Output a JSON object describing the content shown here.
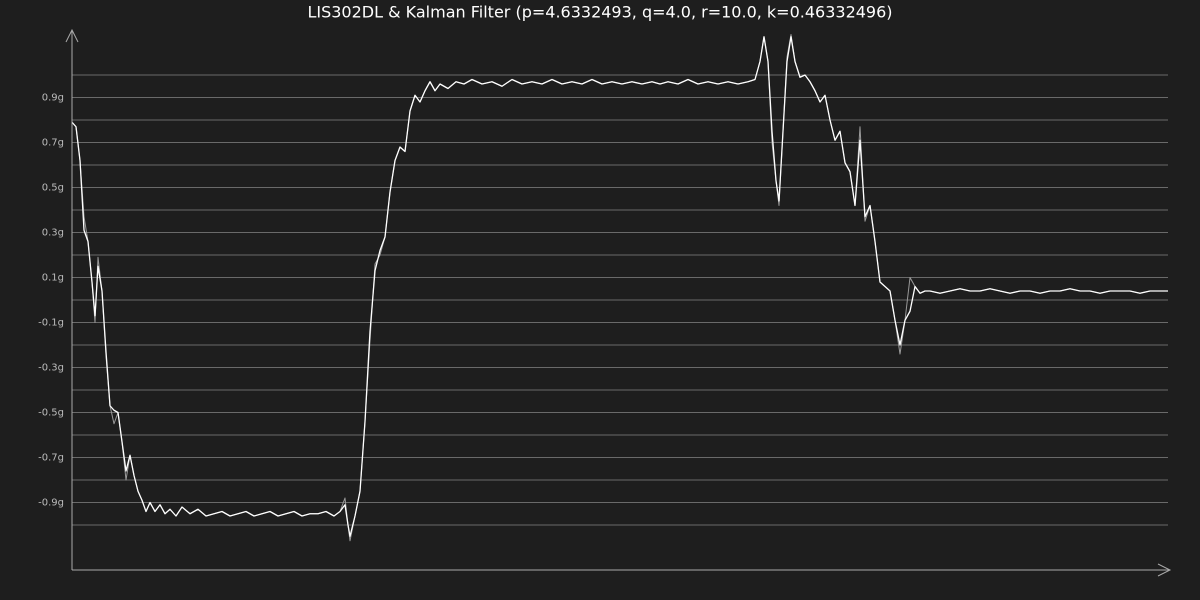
{
  "chart_data": {
    "type": "line",
    "title": "LIS302DL & Kalman Filter (p=4.6332493, q=4.0, r=10.0, k=0.46332496)",
    "x": [
      0,
      4,
      8,
      12,
      16,
      20,
      23,
      26,
      30,
      34,
      38,
      42,
      46,
      50,
      54,
      58,
      62,
      66,
      70,
      74,
      78,
      83,
      88,
      93,
      98,
      104,
      110,
      118,
      126,
      134,
      142,
      150,
      158,
      166,
      174,
      182,
      190,
      198,
      206,
      214,
      222,
      230,
      238,
      246,
      254,
      262,
      268,
      273,
      276,
      278,
      283,
      288,
      293,
      298,
      303,
      308,
      313,
      318,
      323,
      328,
      333,
      338,
      343,
      348,
      353,
      358,
      363,
      368,
      376,
      384,
      392,
      400,
      410,
      420,
      430,
      440,
      450,
      460,
      470,
      480,
      490,
      500,
      510,
      520,
      530,
      540,
      550,
      560,
      570,
      580,
      588,
      596,
      606,
      616,
      626,
      636,
      646,
      656,
      666,
      676,
      683,
      688,
      692,
      696,
      700,
      704,
      707,
      711,
      715,
      719,
      723,
      728,
      733,
      738,
      743,
      748,
      753,
      758,
      763,
      768,
      773,
      778,
      783,
      788,
      793,
      798,
      803,
      808,
      813,
      818,
      823,
      828,
      833,
      838,
      843,
      848,
      853,
      858,
      868,
      878,
      888,
      898,
      908,
      918,
      928,
      938,
      948,
      958,
      968,
      978,
      988,
      998,
      1008,
      1018,
      1028,
      1038,
      1048,
      1058,
      1068,
      1078,
      1088,
      1096
    ],
    "series": [
      {
        "color": "#9a9a9a",
        "values": [
          0.79,
          0.77,
          0.62,
          0.37,
          0.26,
          0.08,
          -0.1,
          0.19,
          0.04,
          -0.25,
          -0.47,
          -0.55,
          -0.5,
          -0.63,
          -0.8,
          -0.69,
          -0.78,
          -0.85,
          -0.89,
          -0.94,
          -0.9,
          -0.94,
          -0.91,
          -0.95,
          -0.93,
          -0.96,
          -0.92,
          -0.95,
          -0.93,
          -0.96,
          -0.95,
          -0.94,
          -0.96,
          -0.95,
          -0.94,
          -0.96,
          -0.95,
          -0.94,
          -0.96,
          -0.95,
          -0.94,
          -0.96,
          -0.95,
          -0.95,
          -0.94,
          -0.96,
          -0.94,
          -0.88,
          -1.0,
          -1.07,
          -0.96,
          -0.85,
          -0.54,
          -0.18,
          0.16,
          0.2,
          0.28,
          0.48,
          0.62,
          0.68,
          0.66,
          0.84,
          0.91,
          0.88,
          0.93,
          0.97,
          0.93,
          0.96,
          0.94,
          0.97,
          0.96,
          0.98,
          0.96,
          0.97,
          0.95,
          0.98,
          0.96,
          0.97,
          0.96,
          0.98,
          0.96,
          0.97,
          0.96,
          0.98,
          0.96,
          0.97,
          0.96,
          0.97,
          0.96,
          0.97,
          0.96,
          0.97,
          0.96,
          0.98,
          0.96,
          0.97,
          0.96,
          0.97,
          0.96,
          0.97,
          0.98,
          1.06,
          1.17,
          1.06,
          0.7,
          0.53,
          0.42,
          0.75,
          1.08,
          1.18,
          1.06,
          0.99,
          1.0,
          0.97,
          0.93,
          0.88,
          0.91,
          0.8,
          0.71,
          0.75,
          0.61,
          0.57,
          0.42,
          0.77,
          0.35,
          0.42,
          0.26,
          0.08,
          0.06,
          0.04,
          -0.09,
          -0.24,
          -0.09,
          0.1,
          0.06,
          0.03,
          0.04,
          0.04,
          0.03,
          0.04,
          0.05,
          0.04,
          0.04,
          0.05,
          0.04,
          0.03,
          0.04,
          0.04,
          0.03,
          0.04,
          0.04,
          0.05,
          0.04,
          0.04,
          0.03,
          0.04,
          0.04,
          0.04,
          0.03,
          0.04,
          0.04,
          0.04
        ]
      },
      {
        "color": "#ffffff",
        "values": [
          0.79,
          0.77,
          0.62,
          0.31,
          0.26,
          0.08,
          -0.07,
          0.15,
          0.04,
          -0.23,
          -0.47,
          -0.49,
          -0.5,
          -0.63,
          -0.76,
          -0.69,
          -0.78,
          -0.85,
          -0.89,
          -0.94,
          -0.9,
          -0.94,
          -0.91,
          -0.95,
          -0.93,
          -0.96,
          -0.92,
          -0.95,
          -0.93,
          -0.96,
          -0.95,
          -0.94,
          -0.96,
          -0.95,
          -0.94,
          -0.96,
          -0.95,
          -0.94,
          -0.96,
          -0.95,
          -0.94,
          -0.96,
          -0.95,
          -0.95,
          -0.94,
          -0.96,
          -0.94,
          -0.91,
          -1.0,
          -1.05,
          -0.96,
          -0.85,
          -0.54,
          -0.14,
          0.13,
          0.22,
          0.28,
          0.48,
          0.62,
          0.68,
          0.66,
          0.84,
          0.91,
          0.88,
          0.93,
          0.97,
          0.93,
          0.96,
          0.94,
          0.97,
          0.96,
          0.98,
          0.96,
          0.97,
          0.95,
          0.98,
          0.96,
          0.97,
          0.96,
          0.98,
          0.96,
          0.97,
          0.96,
          0.98,
          0.96,
          0.97,
          0.96,
          0.97,
          0.96,
          0.97,
          0.96,
          0.97,
          0.96,
          0.98,
          0.96,
          0.97,
          0.96,
          0.97,
          0.96,
          0.97,
          0.98,
          1.06,
          1.17,
          1.06,
          0.75,
          0.53,
          0.44,
          0.75,
          1.06,
          1.17,
          1.06,
          0.99,
          1.0,
          0.97,
          0.93,
          0.88,
          0.91,
          0.8,
          0.71,
          0.75,
          0.61,
          0.57,
          0.42,
          0.71,
          0.37,
          0.42,
          0.26,
          0.08,
          0.06,
          0.04,
          -0.09,
          -0.2,
          -0.09,
          -0.05,
          0.06,
          0.03,
          0.04,
          0.04,
          0.03,
          0.04,
          0.05,
          0.04,
          0.04,
          0.05,
          0.04,
          0.03,
          0.04,
          0.04,
          0.03,
          0.04,
          0.04,
          0.05,
          0.04,
          0.04,
          0.03,
          0.04,
          0.04,
          0.04,
          0.03,
          0.04,
          0.04,
          0.04
        ]
      }
    ],
    "xlim": [
      0,
      1096
    ],
    "ylim": [
      -1.2,
      1.2
    ],
    "yticks": [
      {
        "value": 0.9,
        "label": "0.9g"
      },
      {
        "value": 0.7,
        "label": "0.7g"
      },
      {
        "value": 0.5,
        "label": "0.5g"
      },
      {
        "value": 0.3,
        "label": "0.3g"
      },
      {
        "value": 0.1,
        "label": "0.1g"
      },
      {
        "value": -0.1,
        "label": "-0.1g"
      },
      {
        "value": -0.3,
        "label": "-0.3g"
      },
      {
        "value": -0.5,
        "label": "-0.5g"
      },
      {
        "value": -0.7,
        "label": "-0.7g"
      },
      {
        "value": -0.9,
        "label": "-0.9g"
      }
    ],
    "minor_yticks": [
      1.0,
      0.8,
      0.6,
      0.4,
      0.2,
      0,
      -0.2,
      -0.4,
      -0.6,
      -0.8,
      -1.0
    ],
    "grid": true
  }
}
